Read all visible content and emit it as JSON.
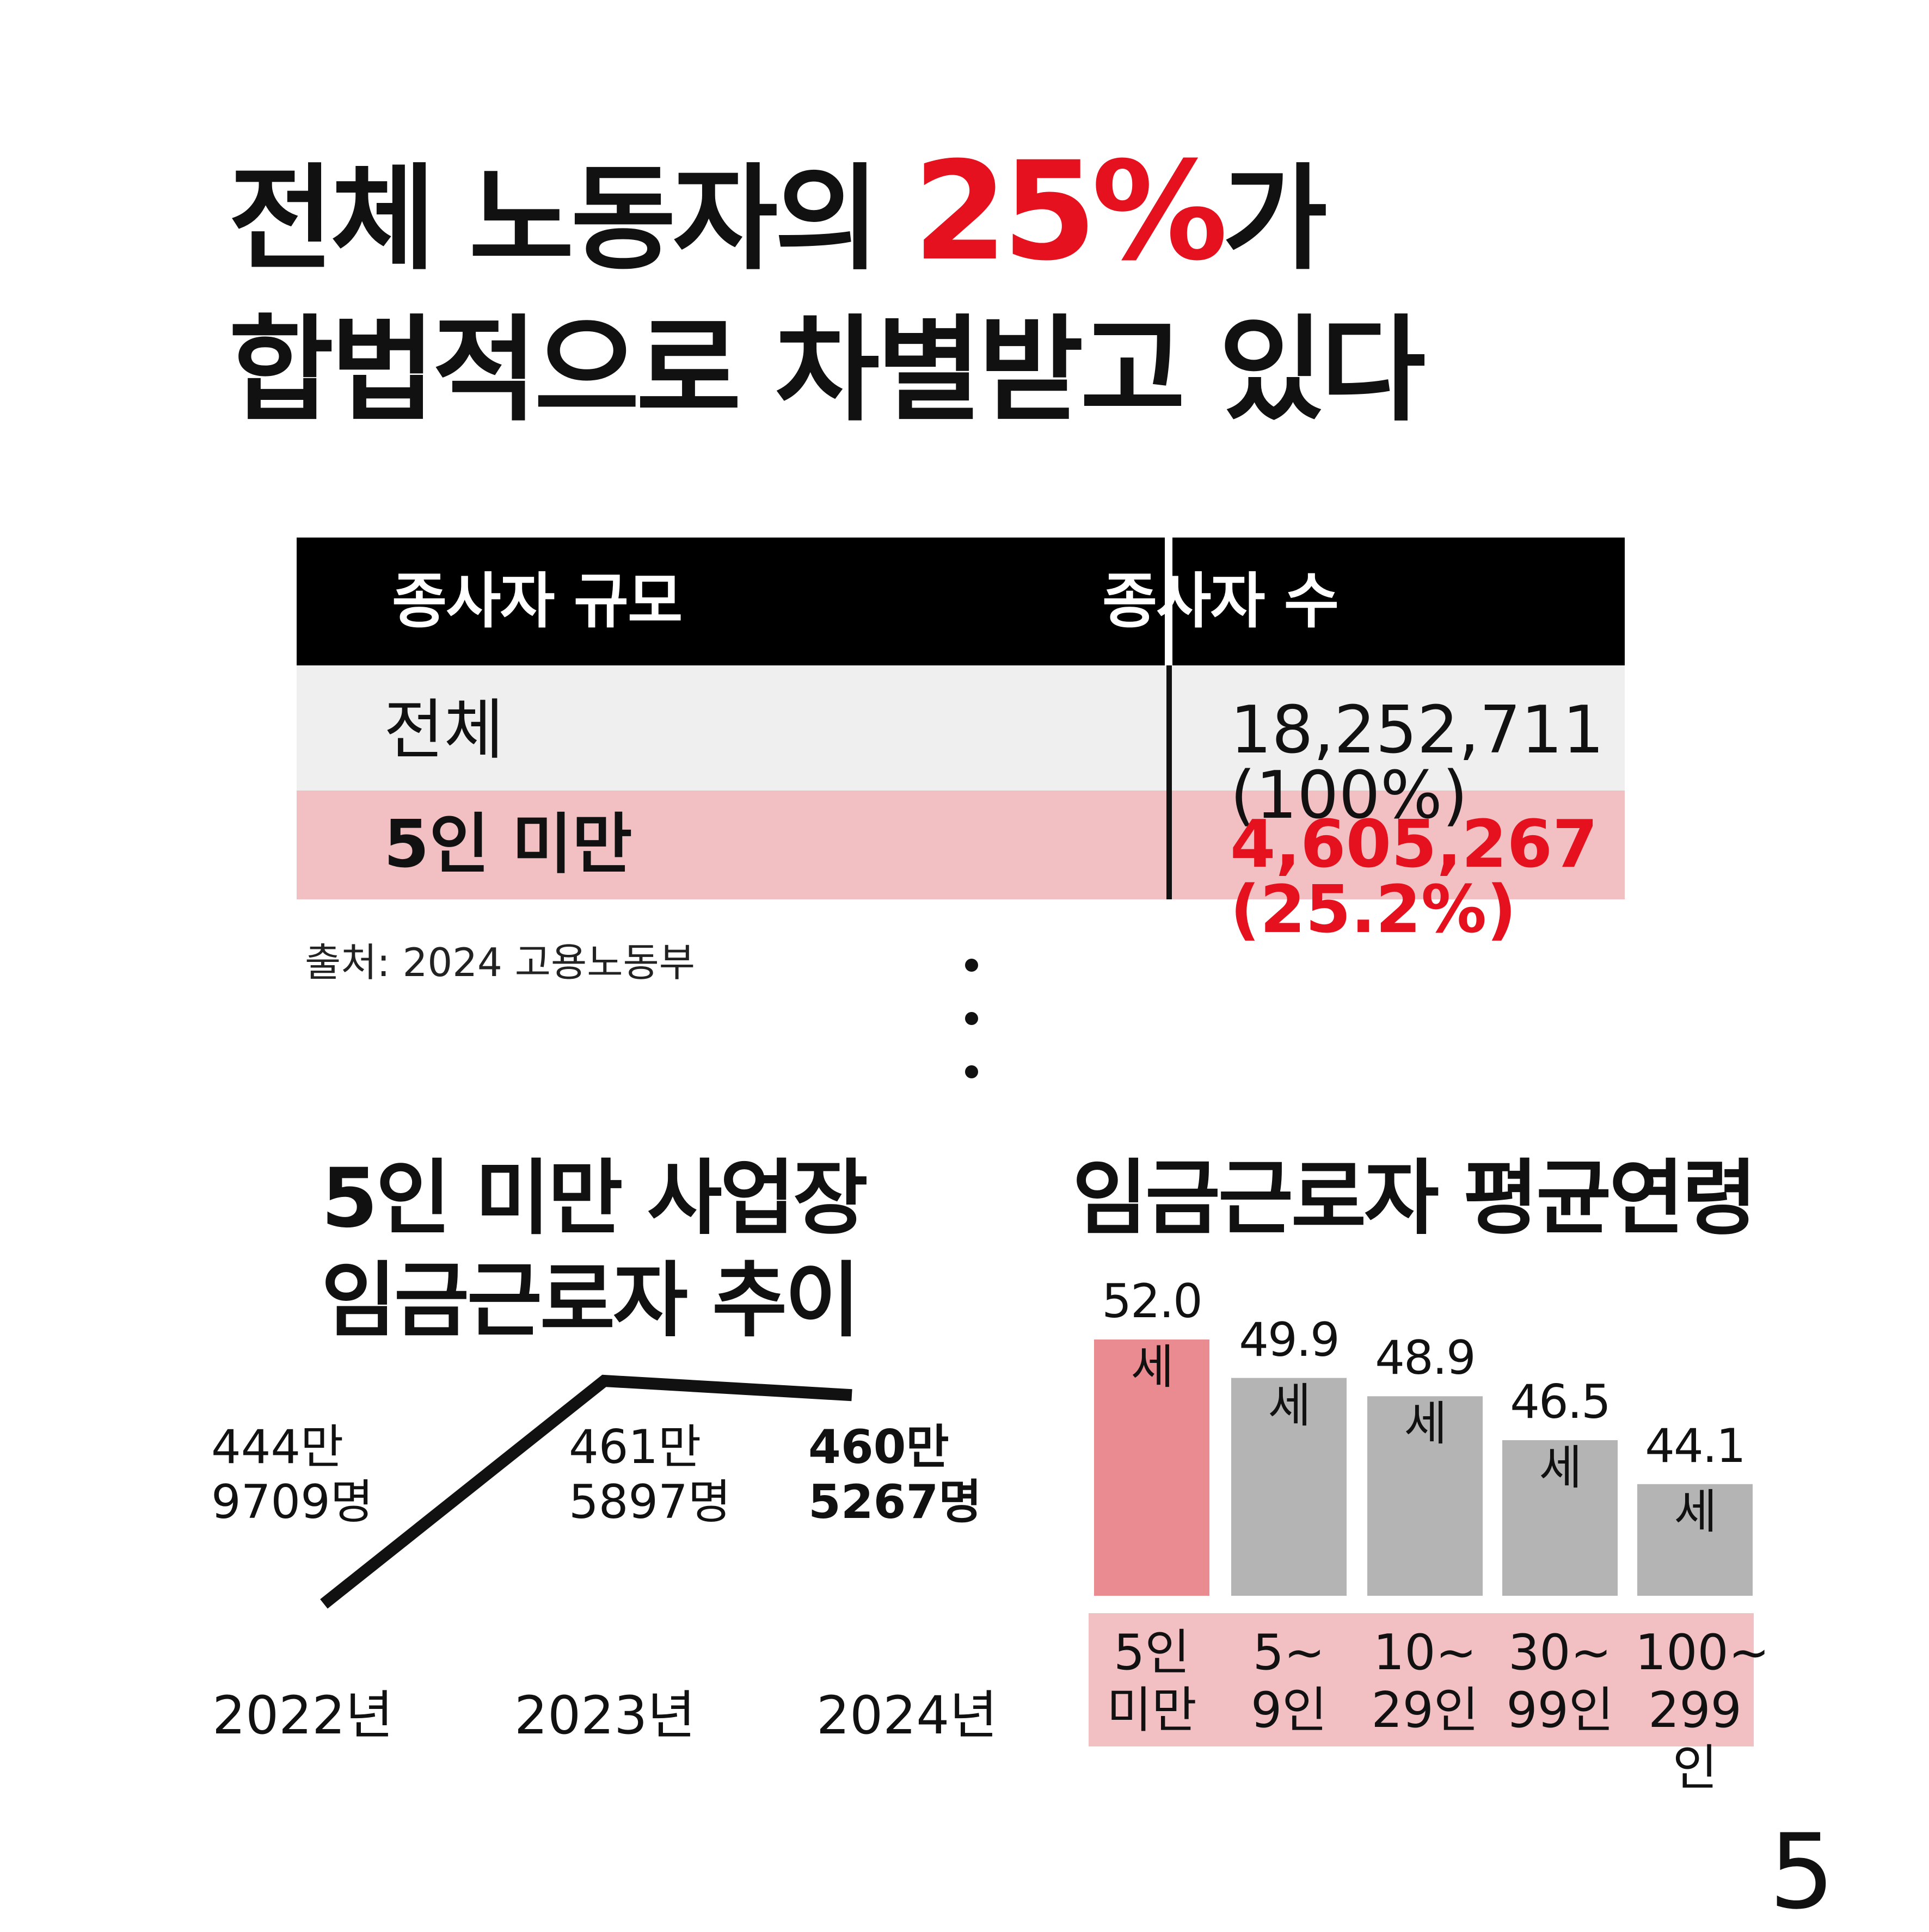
{
  "headline": {
    "line1_prefix": "전체 노동자의 ",
    "line1_highlight": "25%",
    "line1_suffix": "가",
    "line2": "합법적으로 차별받고 있다",
    "highlight_color": "#e5111e"
  },
  "table": {
    "headers": [
      "종사자 규모",
      "종사자 수"
    ],
    "rows": [
      {
        "size": "전체",
        "count": "18,252,711 (100%)"
      },
      {
        "size": "5인 미만",
        "count": "4,605,267 (25.2%)"
      }
    ],
    "source": "출처: 2024 고용노동부"
  },
  "page_number": "5",
  "chart_data": [
    {
      "type": "line",
      "title_line1": "5인 미만 사업장",
      "title_line2": "임금근로자 추이",
      "x": [
        "2022년",
        "2023년",
        "2024년"
      ],
      "values": [
        4449709,
        4615897,
        4605267
      ],
      "value_labels": [
        {
          "line1": "444만",
          "line2": "9709명"
        },
        {
          "line1": "461만",
          "line2": "5897명"
        },
        {
          "line1": "460만",
          "line2": "5267명"
        }
      ],
      "color": "#111111"
    },
    {
      "type": "bar",
      "title": "임금근로자 평균연령",
      "categories": [
        {
          "line1": "5인",
          "line2": "미만"
        },
        {
          "line1": "5~",
          "line2": "9인"
        },
        {
          "line1": "10~",
          "line2": "29인"
        },
        {
          "line1": "30~",
          "line2": "99인"
        },
        {
          "line1": "100~",
          "line2": "299인"
        }
      ],
      "values": [
        52.0,
        49.9,
        48.9,
        46.5,
        44.1
      ],
      "value_labels": [
        "52.0세",
        "49.9세",
        "48.9세",
        "46.5세",
        "44.1세"
      ],
      "colors": [
        "#ea8a91",
        "#b4b4b4",
        "#b4b4b4",
        "#b4b4b4",
        "#b4b4b4"
      ],
      "category_band_color": "#f2c0c2"
    }
  ]
}
